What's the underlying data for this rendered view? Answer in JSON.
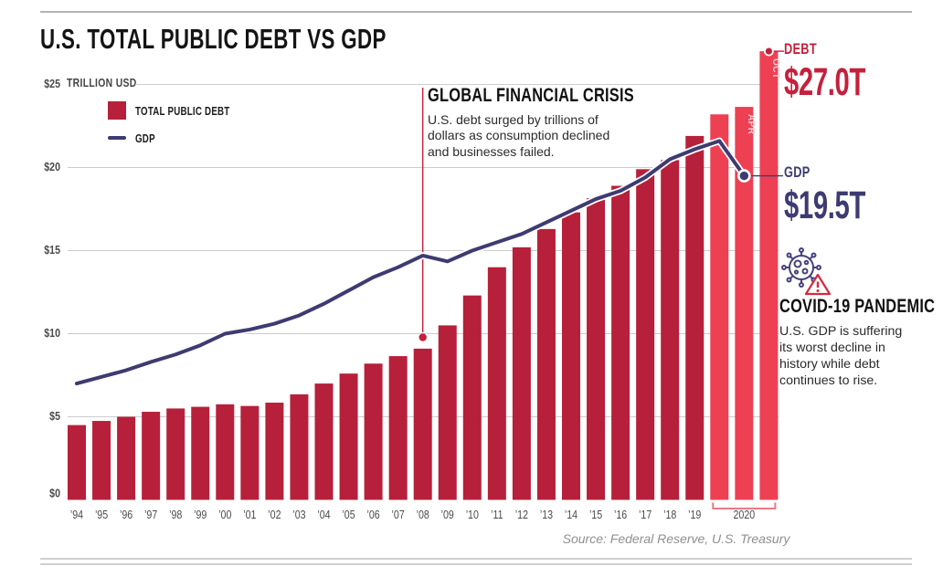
{
  "header": {
    "title": "U.S. TOTAL PUBLIC DEBT VS GDP"
  },
  "axis": {
    "unit_label": "TRILLION USD"
  },
  "legend": {
    "debt_label": "TOTAL PUBLIC DEBT",
    "gdp_label": "GDP"
  },
  "annotations": {
    "gfc": {
      "title": "GLOBAL FINANCIAL CRISIS",
      "body": "U.S. debt surged by trillions of dollars as consumption declined and businesses failed."
    },
    "covid": {
      "title": "COVID-19 PANDEMIC",
      "body": "U.S. GDP is suffering its worst decline in history while debt continues to rise."
    },
    "debt_callout": {
      "label": "DEBT",
      "value": "$27.0T"
    },
    "gdp_callout": {
      "label": "GDP",
      "value": "$19.5T"
    }
  },
  "source": "Source: Federal Reserve, U.S. Treasury",
  "colors": {
    "bar_dark": "#b7203a",
    "bar_bright": "#ee4053",
    "gdp_navy": "#3e3b72",
    "accent_red": "#c5203c",
    "gridline": "#cccccc",
    "axis_text": "#4b4b4b",
    "inbar_label": "#f9cdd3",
    "bracket": "#e87a86",
    "virus_outline": "#45427a",
    "warning_red": "#d6293a"
  },
  "chart_data": {
    "type": "bar+line",
    "title": "U.S. TOTAL PUBLIC DEBT VS GDP",
    "unit": "TRILLION USD",
    "ylim": [
      0,
      25
    ],
    "grid": true,
    "legend_position": "top-left",
    "y_tick_labels": [
      "$25",
      "$20",
      "$15",
      "$10",
      "$5",
      "$0"
    ],
    "y_tick_values": [
      25,
      20,
      15,
      10,
      5,
      0
    ],
    "categories": [
      "’94",
      "’95",
      "’96",
      "’97",
      "’98",
      "’99",
      "’00",
      "’01",
      "’02",
      "’03",
      "’04",
      "’05",
      "’06",
      "’07",
      "’08",
      "’09",
      "’10",
      "’11",
      "’12",
      "’13",
      "’14",
      "’15",
      "’16",
      "’17",
      "’18",
      "’19"
    ],
    "series": [
      {
        "name": "TOTAL PUBLIC DEBT",
        "type": "bar",
        "values": [
          4.5,
          4.75,
          5.0,
          5.3,
          5.5,
          5.6,
          5.75,
          5.65,
          5.85,
          6.35,
          7.0,
          7.6,
          8.2,
          8.65,
          9.1,
          10.5,
          12.3,
          14.0,
          15.2,
          16.3,
          17.3,
          18.15,
          18.9,
          19.9,
          20.45,
          21.9
        ]
      },
      {
        "name": "GDP",
        "type": "line",
        "values": [
          7.0,
          7.4,
          7.8,
          8.3,
          8.75,
          9.3,
          10.0,
          10.25,
          10.6,
          11.1,
          11.8,
          12.6,
          13.4,
          14.0,
          14.7,
          14.35,
          15.0,
          15.5,
          16.0,
          16.7,
          17.4,
          18.1,
          18.6,
          19.4,
          20.5,
          21.1
        ]
      }
    ],
    "group_2020": {
      "label": "2020",
      "bars": [
        {
          "label": "",
          "value": 23.2
        },
        {
          "label": "APR",
          "value": 23.65
        },
        {
          "label": "OCT",
          "value": 27.0
        }
      ],
      "gdp_peak_value": 21.6,
      "gdp_final_value": 19.5
    },
    "gfc_marker_year": "’08"
  }
}
